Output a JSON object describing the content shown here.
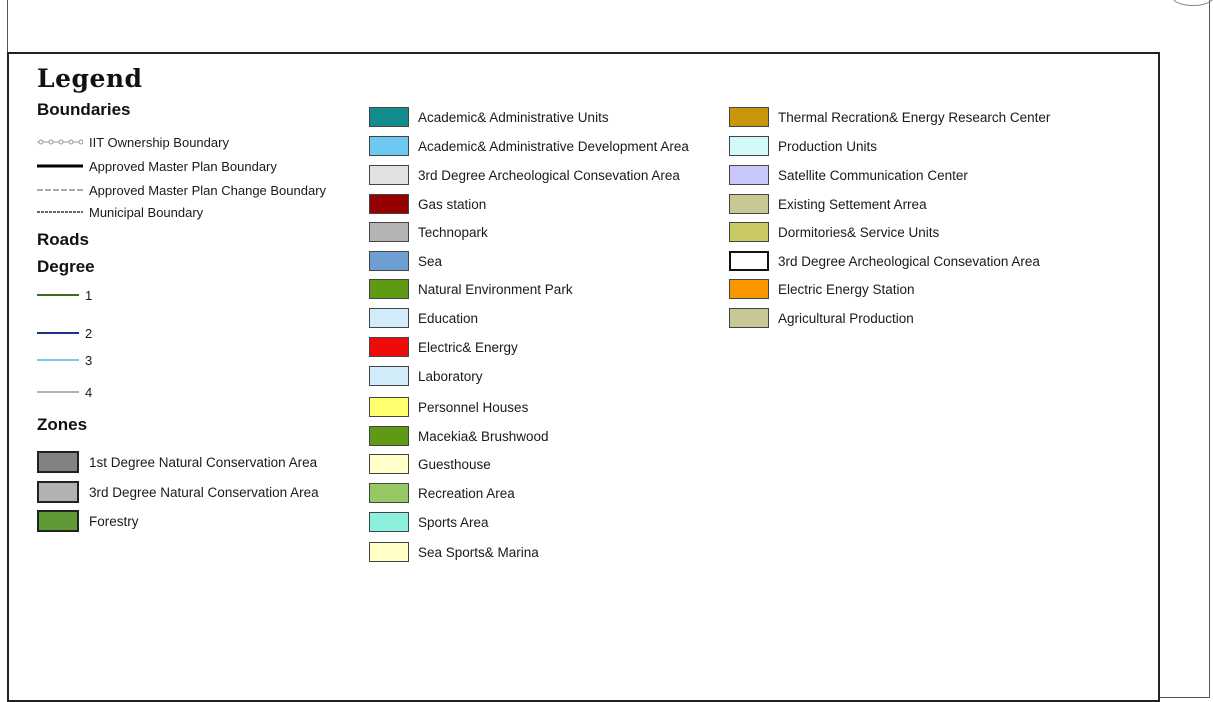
{
  "legend": {
    "title": "Legend",
    "boundaries": {
      "heading": "Boundaries",
      "items": [
        {
          "label": "IIT Ownership Boundary",
          "icon": "dotted-circle-line-icon",
          "color": "#999999"
        },
        {
          "label": "Approved Master Plan Boundary",
          "icon": "thick-solid-line-icon",
          "color": "#000000"
        },
        {
          "label": "Approved Master Plan Change Boundary",
          "icon": "dashed-line-icon",
          "color": "#555555"
        },
        {
          "label": "Municipal Boundary",
          "icon": "dash-dot-line-icon",
          "color": "#333333"
        }
      ]
    },
    "roads": {
      "heading": "Roads",
      "subheading": "Degree",
      "items": [
        {
          "label": "1",
          "color": "#3a6b1e"
        },
        {
          "label": "2",
          "color": "#1f2f8c"
        },
        {
          "label": "3",
          "color": "#4fb7e0"
        },
        {
          "label": "4",
          "color": "#666666"
        }
      ]
    },
    "zones": {
      "heading": "Zones",
      "items": [
        {
          "label": "1st Degree Natural Conservation Area",
          "color": "#828282"
        },
        {
          "label": "3rd Degree Natural Conservation Area",
          "color": "#b2b2b2"
        },
        {
          "label": "Forestry",
          "color": "#5e9a36"
        }
      ]
    },
    "land_use_col1": [
      {
        "label": "Academic& Administrative Units",
        "color": "#128c8c"
      },
      {
        "label": "Academic& Administrative Development Area",
        "color": "#6ec8f2"
      },
      {
        "label": "3rd Degree Archeological Consevation Area",
        "color": "#e1e1e1"
      },
      {
        "label": "Gas station",
        "color": "#960000"
      },
      {
        "label": "Technopark",
        "color": "#b4b4b4"
      },
      {
        "label": "Sea",
        "color": "#6e9fd2"
      },
      {
        "label": "Natural Environment Park",
        "color": "#5e9a14"
      },
      {
        "label": "Education",
        "color": "#d2ecfa"
      },
      {
        "label": "Electric& Energy",
        "color": "#f00a0a"
      },
      {
        "label": "Laboratory",
        "color": "#d2ecfa"
      },
      {
        "label": "Personnel Houses",
        "color": "#ffff70"
      },
      {
        "label": "Macekia& Brushwood",
        "color": "#5e9a14"
      },
      {
        "label": "Guesthouse",
        "color": "#ffffc8"
      },
      {
        "label": "Recreation Area",
        "color": "#96c864"
      },
      {
        "label": "Sports Area",
        "color": "#8cf0dc"
      },
      {
        "label": "Sea Sports& Marina",
        "color": "#ffffc8"
      }
    ],
    "land_use_col2": [
      {
        "label": "Thermal Recration& Energy Research Center",
        "color": "#c8960a"
      },
      {
        "label": "Production Units",
        "color": "#d2fafa"
      },
      {
        "label": "Satellite Communication Center",
        "color": "#c8c8fa"
      },
      {
        "label": "Existing Settement Arrea",
        "color": "#c8c896"
      },
      {
        "label": "Dormitories& Service Units",
        "color": "#c8c864"
      },
      {
        "label": "3rd Degree Archeological Consevation Area",
        "color": "#ffffff"
      },
      {
        "label": "Electric Energy Station",
        "color": "#fa9600"
      },
      {
        "label": "Agricultural Production",
        "color": "#c8c896"
      }
    ]
  }
}
